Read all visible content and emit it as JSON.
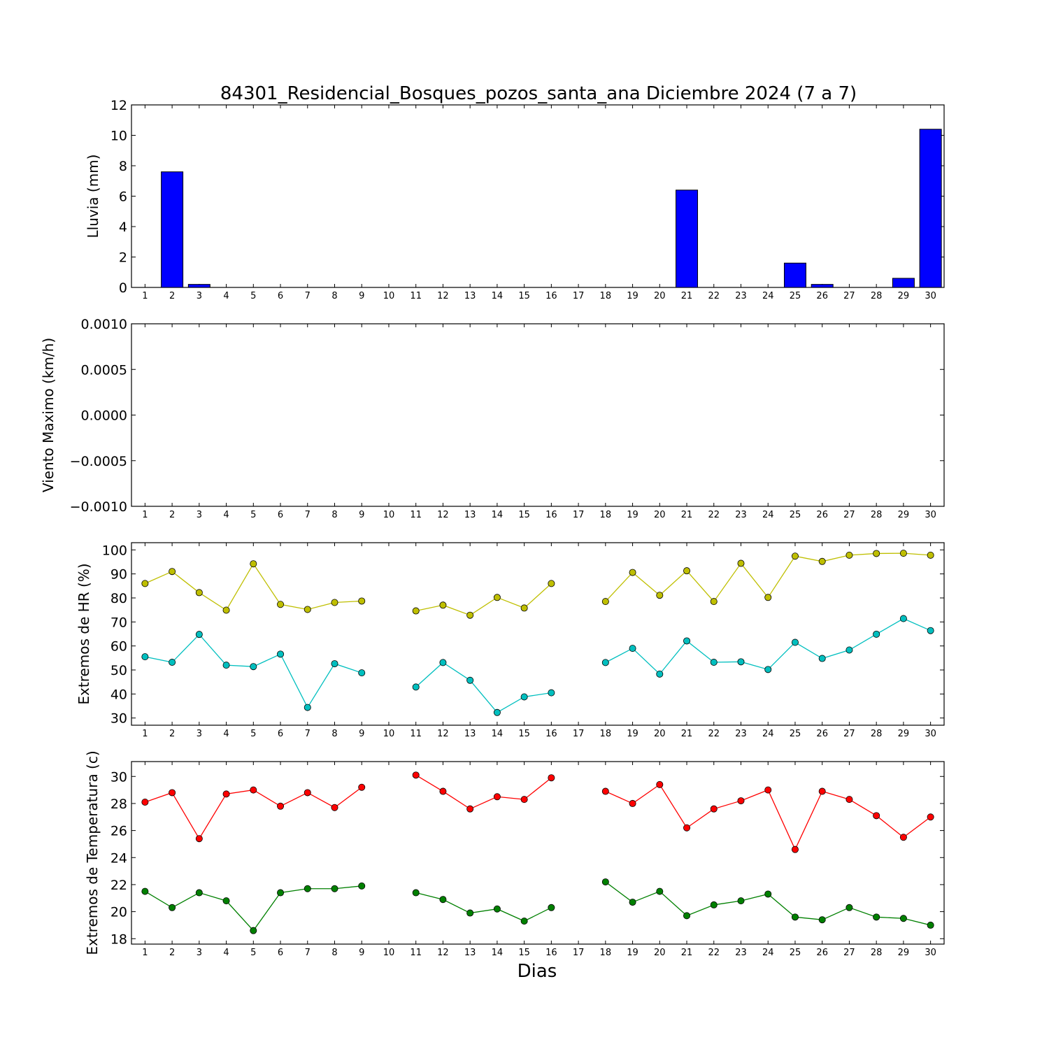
{
  "title": "84301_Residencial_Bosques_pozos_santa_ana Diciembre 2024  (7 a 7)",
  "xlabel": "Dias",
  "chart_data": [
    {
      "type": "bar",
      "ylabel": "Lluvia (mm)",
      "ylim": [
        0,
        12
      ],
      "yticks": [
        "0",
        "2",
        "4",
        "6",
        "8",
        "10",
        "12"
      ],
      "categories": [
        1,
        2,
        3,
        4,
        5,
        6,
        7,
        8,
        9,
        10,
        11,
        12,
        13,
        14,
        15,
        16,
        17,
        18,
        19,
        20,
        21,
        22,
        23,
        24,
        25,
        26,
        27,
        28,
        29,
        30
      ],
      "values": [
        0,
        7.6,
        0.2,
        0,
        0,
        0,
        0,
        0,
        0,
        0,
        0,
        0,
        0,
        0,
        0,
        0,
        0,
        0,
        0,
        0,
        6.4,
        0,
        0,
        0,
        1.6,
        0.2,
        0,
        0,
        0.6,
        10.4
      ],
      "color": "#0000ff"
    },
    {
      "type": "line",
      "ylabel": "Viento Maximo (km/h)",
      "ylim": [
        -0.001,
        0.001
      ],
      "yticks": [
        "−0.0010",
        "−0.0005",
        "0.0000",
        "0.0005",
        "0.0010"
      ],
      "categories": [
        1,
        2,
        3,
        4,
        5,
        6,
        7,
        8,
        9,
        10,
        11,
        12,
        13,
        14,
        15,
        16,
        17,
        18,
        19,
        20,
        21,
        22,
        23,
        24,
        25,
        26,
        27,
        28,
        29,
        30
      ],
      "series": []
    },
    {
      "type": "line",
      "ylabel": "Extremos de HR (%)",
      "ylim": [
        27,
        103
      ],
      "yticks": [
        "30",
        "40",
        "50",
        "60",
        "70",
        "80",
        "90",
        "100"
      ],
      "categories": [
        1,
        2,
        3,
        4,
        5,
        6,
        7,
        8,
        9,
        10,
        11,
        12,
        13,
        14,
        15,
        16,
        17,
        18,
        19,
        20,
        21,
        22,
        23,
        24,
        25,
        26,
        27,
        28,
        29,
        30
      ],
      "series": [
        {
          "color": "#bfbf00",
          "values": [
            86,
            91,
            82.2,
            74.9,
            94.2,
            77.3,
            75.2,
            78.1,
            78.7,
            null,
            74.6,
            77,
            72.8,
            80.2,
            75.8,
            86,
            null,
            78.5,
            90.6,
            81.1,
            91.3,
            78.5,
            94.4,
            80.2,
            97.4,
            95.2,
            97.8,
            98.5,
            98.6,
            97.8
          ]
        },
        {
          "color": "#00bfbf",
          "values": [
            55.5,
            53.2,
            64.8,
            52,
            51.4,
            56.6,
            34.4,
            52.6,
            48.8,
            null,
            42.9,
            53.1,
            45.7,
            32.3,
            38.8,
            40.5,
            null,
            53.1,
            59,
            48.3,
            62.1,
            53.2,
            53.4,
            50.2,
            61.5,
            54.8,
            58.3,
            64.9,
            71.4,
            66.4
          ]
        }
      ]
    },
    {
      "type": "line",
      "ylabel": "Extremos de Temperatura (c)",
      "ylim": [
        17.6,
        31.1
      ],
      "yticks": [
        "18",
        "20",
        "22",
        "24",
        "26",
        "28",
        "30"
      ],
      "categories": [
        1,
        2,
        3,
        4,
        5,
        6,
        7,
        8,
        9,
        10,
        11,
        12,
        13,
        14,
        15,
        16,
        17,
        18,
        19,
        20,
        21,
        22,
        23,
        24,
        25,
        26,
        27,
        28,
        29,
        30
      ],
      "series": [
        {
          "color": "#ff0000",
          "values": [
            28.1,
            28.8,
            25.4,
            28.7,
            29,
            27.8,
            28.8,
            27.7,
            29.2,
            null,
            30.1,
            28.9,
            27.6,
            28.5,
            28.3,
            29.9,
            null,
            28.9,
            28,
            29.4,
            26.2,
            27.6,
            28.2,
            29,
            24.6,
            28.9,
            28.3,
            27.1,
            25.5,
            27
          ]
        },
        {
          "color": "#008000",
          "values": [
            21.5,
            20.3,
            21.4,
            20.8,
            18.6,
            21.4,
            21.7,
            21.7,
            21.9,
            null,
            21.4,
            20.9,
            19.9,
            20.2,
            19.3,
            20.3,
            null,
            22.2,
            20.7,
            21.5,
            19.7,
            20.5,
            20.8,
            21.3,
            19.6,
            19.4,
            20.3,
            19.6,
            19.5,
            19
          ]
        }
      ]
    }
  ]
}
